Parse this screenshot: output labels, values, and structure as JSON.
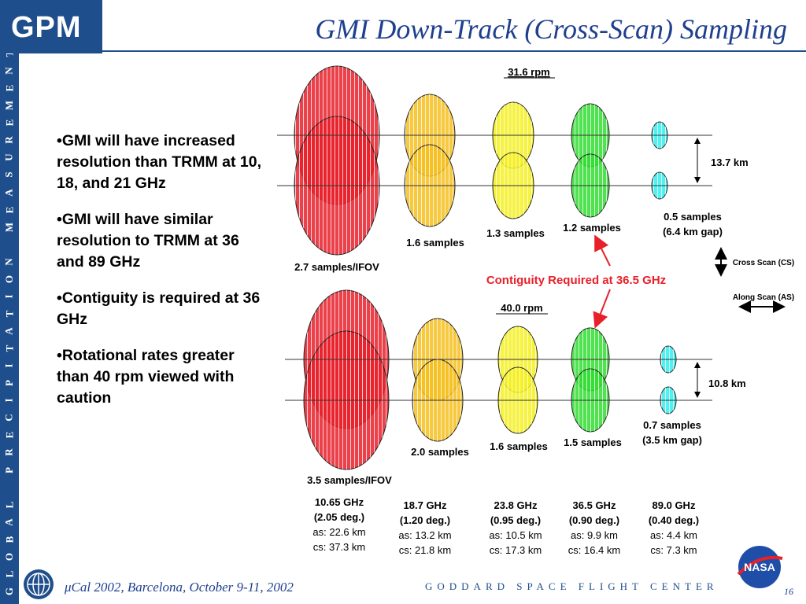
{
  "header": {
    "logo": "GPM",
    "title": "GMI Down-Track (Cross-Scan) Sampling"
  },
  "sidebar": {
    "text": "GLOBAL PRECIPITATION MEASUREMENT"
  },
  "bullets": [
    "•GMI will have increased resolution than TRMM at 10, 18, and 21 GHz",
    "•GMI will have similar resolution to TRMM at 36 and 89 GHz",
    "•Contiguity is required at 36 GHz",
    "•Rotational rates greater than 40 rpm viewed with caution"
  ],
  "diagram": {
    "top": {
      "rpm": "31.6 rpm",
      "spacing": "13.7 km",
      "samples": [
        "2.7 samples/IFOV",
        "1.6 samples",
        "1.3 samples",
        "1.2 samples",
        "0.5 samples",
        "(6.4 km gap)"
      ]
    },
    "bottom": {
      "rpm": "40.0 rpm",
      "spacing": "10.8 km",
      "samples": [
        "3.5 samples/IFOV",
        "2.0 samples",
        "1.6 samples",
        "1.5 samples",
        "0.7 samples",
        "(3.5 km gap)"
      ]
    },
    "contiguity": "Contiguity Required at 36.5 GHz",
    "cross_scan": "Cross Scan (CS)",
    "along_scan": "Along Scan (AS)",
    "channels": [
      {
        "freq": "10.65 GHz",
        "deg": "(2.05 deg.)",
        "as": "as: 22.6 km",
        "cs": "cs: 37.3 km"
      },
      {
        "freq": "18.7 GHz",
        "deg": "(1.20 deg.)",
        "as": "as: 13.2 km",
        "cs": "cs: 21.8 km"
      },
      {
        "freq": "23.8 GHz",
        "deg": "(0.95 deg.)",
        "as": "as: 10.5 km",
        "cs": "cs: 17.3 km"
      },
      {
        "freq": "36.5 GHz",
        "deg": "(0.90 deg.)",
        "as": "as: 9.9 km",
        "cs": "cs: 16.4 km"
      },
      {
        "freq": "89.0 GHz",
        "deg": "(0.40 deg.)",
        "as": "as: 4.4 km",
        "cs": "cs: 7.3 km"
      }
    ],
    "colors": {
      "c10": "#e8202a",
      "c18": "#f5c020",
      "c23": "#f5f020",
      "c36": "#33dd33",
      "c89": "#33eeee",
      "arrow": "#e8202a"
    }
  },
  "footer": {
    "left": "μCal 2002, Barcelona, October 9-11, 2002",
    "center": "GODDARD SPACE FLIGHT CENTER",
    "page": "16",
    "nasa": "NASA"
  }
}
